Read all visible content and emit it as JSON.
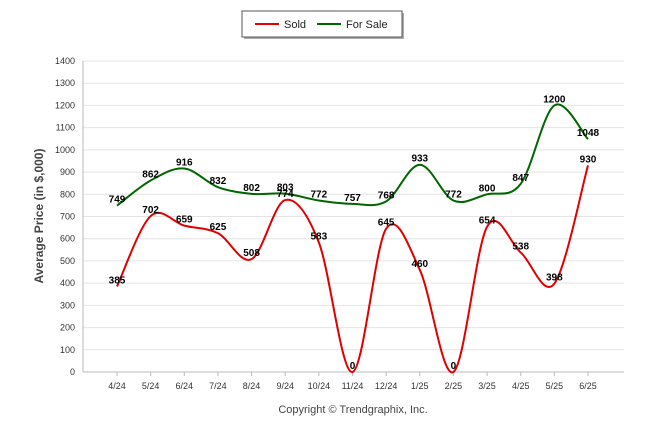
{
  "chart_data": {
    "type": "line",
    "ylabel": "Average Price (in $,000)",
    "xlabel": "",
    "ylim": [
      0,
      1400
    ],
    "yticks": [
      0,
      100,
      200,
      300,
      400,
      500,
      600,
      700,
      800,
      900,
      1000,
      1100,
      1200,
      1300,
      1400
    ],
    "categories": [
      "4/24",
      "5/24",
      "6/24",
      "7/24",
      "8/24",
      "9/24",
      "10/24",
      "11/24",
      "12/24",
      "1/25",
      "2/25",
      "3/25",
      "4/25",
      "5/25",
      "6/25"
    ],
    "series": [
      {
        "name": "Sold",
        "color": "#e00000",
        "values": [
          385,
          702,
          659,
          625,
          508,
          774,
          583,
          0,
          645,
          460,
          0,
          654,
          538,
          398,
          930
        ]
      },
      {
        "name": "For Sale",
        "color": "#006600",
        "values": [
          749,
          862,
          916,
          832,
          802,
          803,
          772,
          757,
          768,
          933,
          772,
          800,
          847,
          1200,
          1048
        ]
      }
    ],
    "legend_position": "top-center",
    "grid": true
  },
  "footer": "Copyright © Trendgraphix, Inc."
}
